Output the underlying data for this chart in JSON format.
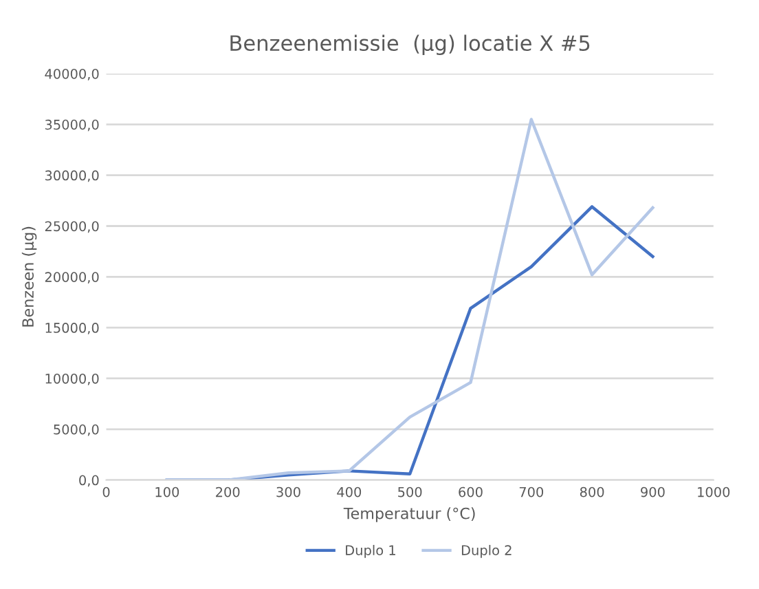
{
  "chart_data": {
    "type": "line",
    "title": "Benzeenemissie  (µg) locatie X #5",
    "xlabel": "Temperatuur (°C)",
    "ylabel": "Benzeen (µg)",
    "x": [
      100,
      200,
      300,
      400,
      500,
      600,
      700,
      800,
      900
    ],
    "series": [
      {
        "name": "Duplo 1",
        "color": "#4472c4",
        "values": [
          0,
          0,
          500,
          900,
          600,
          16900,
          21000,
          26900,
          22000
        ]
      },
      {
        "name": "Duplo 2",
        "color": "#b4c7e7",
        "values": [
          0,
          0,
          700,
          900,
          6200,
          9600,
          35500,
          20200,
          26800
        ]
      }
    ],
    "xlim": [
      0,
      1000
    ],
    "xticks": [
      0,
      100,
      200,
      300,
      400,
      500,
      600,
      700,
      800,
      900,
      1000
    ],
    "ylim": [
      0,
      40000
    ],
    "yticks": [
      {
        "value": 0,
        "label": "0,0"
      },
      {
        "value": 5000,
        "label": "5000,0"
      },
      {
        "value": 10000,
        "label": "10000,0"
      },
      {
        "value": 15000,
        "label": "15000,0"
      },
      {
        "value": 20000,
        "label": "20000,0"
      },
      {
        "value": 25000,
        "label": "25000,0"
      },
      {
        "value": 30000,
        "label": "30000,0"
      },
      {
        "value": 35000,
        "label": "35000,0"
      },
      {
        "value": 40000,
        "label": "40000,0"
      }
    ],
    "grid": "y",
    "legend": "bottom",
    "marker": "none",
    "line_style": "solid"
  }
}
